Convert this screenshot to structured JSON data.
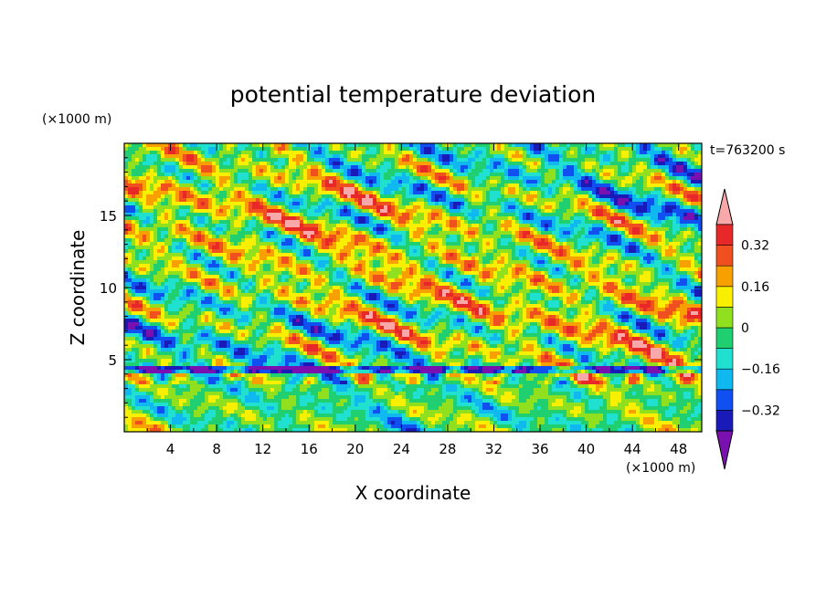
{
  "chart_data": {
    "type": "heatmap",
    "title": "potential temperature deviation",
    "xlabel": "X coordinate",
    "ylabel": "Z coordinate",
    "x_unit": "(×1000 m)",
    "y_unit": "(×1000 m)",
    "time_label": "t=763200 s",
    "xlim": [
      0,
      50
    ],
    "ylim": [
      0,
      20
    ],
    "xticks": [
      4,
      8,
      12,
      16,
      20,
      24,
      28,
      32,
      36,
      40,
      44,
      48
    ],
    "yticks": [
      5,
      10,
      15
    ],
    "colorbar": {
      "ticks": [
        {
          "label": "0.32",
          "value": 0.32
        },
        {
          "label": "0.16",
          "value": 0.16
        },
        {
          "label": "0",
          "value": 0
        },
        {
          "label": "−0.16",
          "value": -0.16
        },
        {
          "label": "−0.32",
          "value": -0.32
        }
      ],
      "levels": [
        -0.4,
        -0.32,
        -0.24,
        -0.16,
        -0.08,
        0,
        0.08,
        0.16,
        0.24,
        0.32,
        0.4
      ],
      "colors": [
        "#7a10b0",
        "#1a1ab8",
        "#1050f0",
        "#10b8f0",
        "#20e0d0",
        "#20d070",
        "#90e020",
        "#f8f000",
        "#f8a000",
        "#f05020",
        "#e82828",
        "#f8a8a8"
      ]
    }
  }
}
